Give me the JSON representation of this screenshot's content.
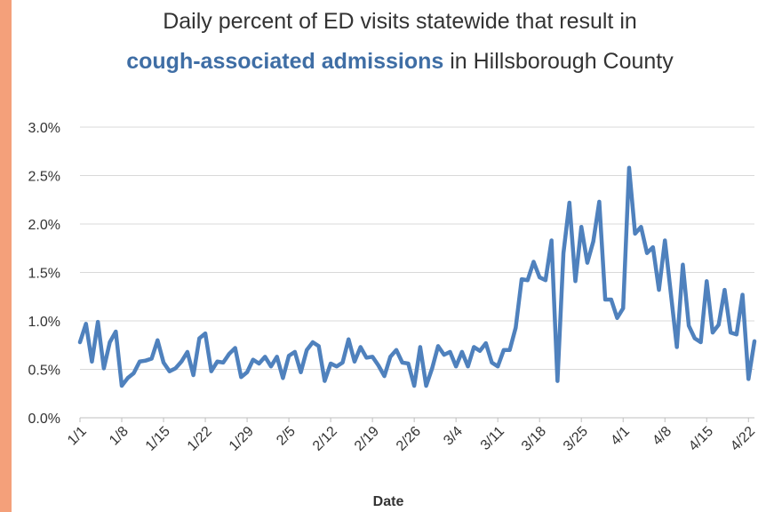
{
  "chart_data": {
    "type": "line",
    "title_line1": "Daily percent of ED visits statewide that result in",
    "title_highlight": "cough-associated admissions",
    "title_rest": " in Hillsborough County",
    "xlabel": "Date",
    "ylabel": "",
    "ylim": [
      0,
      0.03
    ],
    "yticks": [
      "0.0%",
      "0.5%",
      "1.0%",
      "1.5%",
      "2.0%",
      "2.5%",
      "3.0%"
    ],
    "xticks": [
      "1/1",
      "1/8",
      "1/15",
      "1/22",
      "1/29",
      "2/5",
      "2/12",
      "2/19",
      "2/26",
      "3/4",
      "3/11",
      "3/18",
      "3/25",
      "4/1",
      "4/8",
      "4/15",
      "4/22"
    ],
    "grid": true,
    "line_color": "#4F81BD",
    "series": [
      {
        "values": [
          0.0078,
          0.0097,
          0.0058,
          0.0099,
          0.0051,
          0.0078,
          0.0089,
          0.0033,
          0.0041,
          0.0046,
          0.0058,
          0.0059,
          0.0061,
          0.008,
          0.0057,
          0.0048,
          0.0051,
          0.0058,
          0.0068,
          0.0044,
          0.0082,
          0.0087,
          0.0048,
          0.0058,
          0.0057,
          0.0066,
          0.0072,
          0.0042,
          0.0047,
          0.006,
          0.0056,
          0.0063,
          0.0053,
          0.0063,
          0.0041,
          0.0064,
          0.0068,
          0.0047,
          0.007,
          0.0078,
          0.0074,
          0.0038,
          0.0056,
          0.0053,
          0.0057,
          0.0081,
          0.0058,
          0.0073,
          0.0062,
          0.0063,
          0.0054,
          0.0043,
          0.0063,
          0.007,
          0.0057,
          0.0056,
          0.0033,
          0.0073,
          0.0033,
          0.0051,
          0.0074,
          0.0065,
          0.0068,
          0.0053,
          0.0068,
          0.0053,
          0.0073,
          0.0069,
          0.0077,
          0.0057,
          0.0053,
          0.007,
          0.007,
          0.0093,
          0.0143,
          0.0142,
          0.0161,
          0.0145,
          0.0142,
          0.0183,
          0.0038,
          0.017,
          0.0222,
          0.0141,
          0.0197,
          0.016,
          0.0182,
          0.0223,
          0.0122,
          0.0122,
          0.0103,
          0.0113,
          0.0258,
          0.019,
          0.0197,
          0.017,
          0.0176,
          0.0132,
          0.0183,
          0.0128,
          0.0073,
          0.0158,
          0.0095,
          0.0082,
          0.0078,
          0.0141,
          0.0088,
          0.0096,
          0.0132,
          0.0088,
          0.0086,
          0.0127,
          0.004,
          0.0079
        ]
      }
    ]
  }
}
